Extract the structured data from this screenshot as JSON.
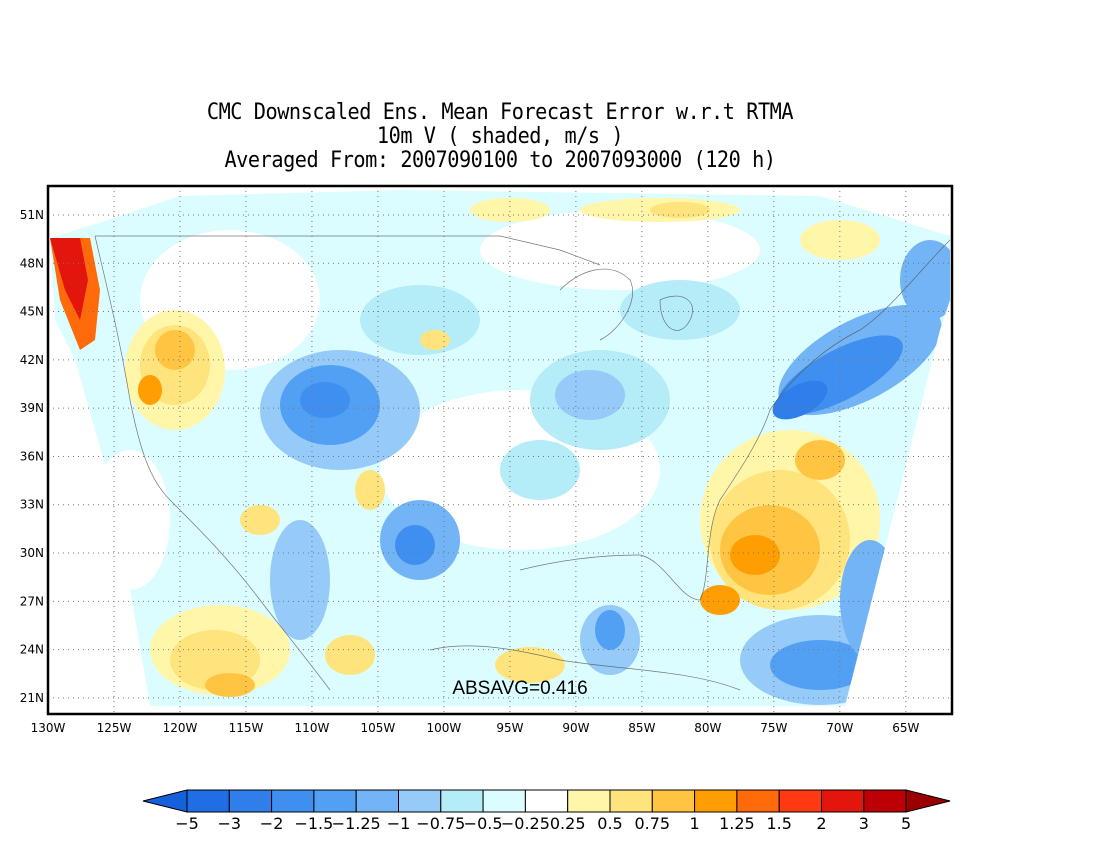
{
  "title": {
    "line1": "CMC Downscaled Ens. Mean Forecast Error w.r.t RTMA",
    "line2": "10m V ( shaded, m/s )",
    "line3": "Averaged From: 2007090100 to 2007093000 (120 h)"
  },
  "map": {
    "lon_labels": [
      "130W",
      "125W",
      "120W",
      "115W",
      "110W",
      "105W",
      "100W",
      "95W",
      "90W",
      "85W",
      "80W",
      "75W",
      "70W",
      "65W"
    ],
    "lon_values": [
      -130,
      -125,
      -120,
      -115,
      -110,
      -105,
      -100,
      -95,
      -90,
      -85,
      -80,
      -75,
      -70,
      -65
    ],
    "lat_labels": [
      "21N",
      "24N",
      "27N",
      "30N",
      "33N",
      "36N",
      "39N",
      "42N",
      "45N",
      "48N",
      "51N"
    ],
    "lat_values": [
      21,
      24,
      27,
      30,
      33,
      36,
      39,
      42,
      45,
      48,
      51
    ],
    "lon_range": [
      -130,
      -61.5
    ],
    "lat_range": [
      20,
      52.8
    ],
    "grid": "dotted",
    "annotation": "ABSAVG=0.416"
  },
  "colorbar": {
    "labels": [
      "-5",
      "-3",
      "-2",
      "-1.5",
      "-1.25",
      "-1",
      "-0.75",
      "-0.5",
      "-0.25",
      "0.25",
      "0.5",
      "0.75",
      "1",
      "1.25",
      "1.5",
      "2",
      "3",
      "5"
    ],
    "colors": [
      "#1f6ee6",
      "#2f7eea",
      "#3f8ff0",
      "#52a0f3",
      "#72b4f6",
      "#96caf8",
      "#b4ecf7",
      "#dcfdff",
      "#ffffff",
      "#fff6a9",
      "#ffe37c",
      "#ffc542",
      "#ff9e02",
      "#ff6a0a",
      "#ff3a13",
      "#e2160c",
      "#bd0005"
    ],
    "low_extend_color": "#1560db",
    "high_extend_color": "#9a0000"
  }
}
